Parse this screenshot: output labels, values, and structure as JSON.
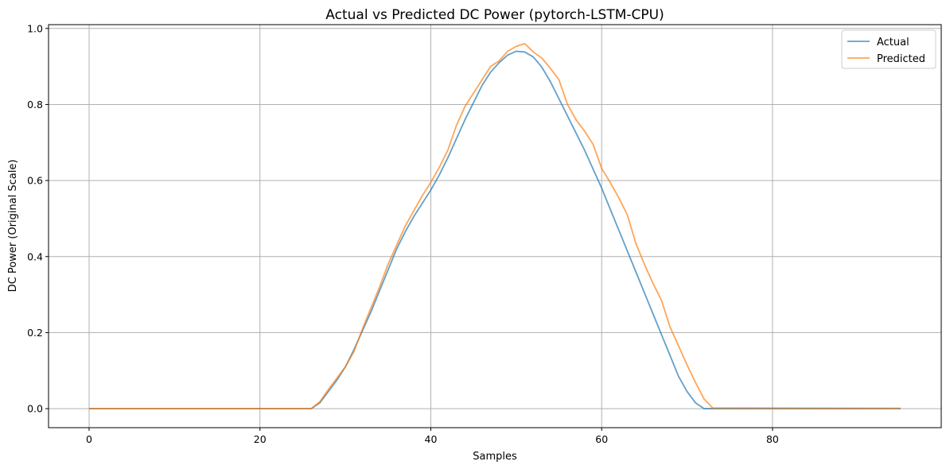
{
  "chart_data": {
    "type": "line",
    "title": "Actual vs Predicted DC Power (pytorch-LSTM-CPU)",
    "xlabel": "Samples",
    "ylabel": "DC Power (Original Scale)",
    "xlim": [
      -4.75,
      99.75
    ],
    "ylim": [
      -0.05,
      1.01
    ],
    "xticks": [
      0,
      20,
      40,
      60,
      80
    ],
    "yticks": [
      0.0,
      0.2,
      0.4,
      0.6,
      0.8,
      1.0
    ],
    "xtick_labels": [
      "0",
      "20",
      "40",
      "60",
      "80"
    ],
    "ytick_labels": [
      "0.0",
      "0.2",
      "0.4",
      "0.6",
      "0.8",
      "1.0"
    ],
    "grid": true,
    "legend_position": "top-right",
    "series": [
      {
        "name": "Actual",
        "color": "#1f77b4",
        "x": [
          0,
          26,
          27,
          28,
          29,
          30,
          31,
          32,
          33,
          34,
          35,
          36,
          37,
          38,
          39,
          40,
          41,
          42,
          43,
          44,
          45,
          46,
          47,
          48,
          49,
          50,
          51,
          52,
          53,
          54,
          55,
          56,
          57,
          58,
          59,
          60,
          61,
          62,
          63,
          64,
          65,
          66,
          67,
          68,
          69,
          70,
          71,
          72,
          73,
          95
        ],
        "y": [
          0.0,
          0.0,
          0.015,
          0.045,
          0.075,
          0.11,
          0.155,
          0.205,
          0.255,
          0.31,
          0.365,
          0.42,
          0.465,
          0.505,
          0.54,
          0.575,
          0.615,
          0.66,
          0.71,
          0.76,
          0.805,
          0.85,
          0.885,
          0.91,
          0.93,
          0.94,
          0.938,
          0.925,
          0.898,
          0.86,
          0.815,
          0.77,
          0.725,
          0.68,
          0.63,
          0.58,
          0.525,
          0.47,
          0.415,
          0.36,
          0.305,
          0.25,
          0.195,
          0.14,
          0.085,
          0.045,
          0.015,
          0.0,
          0.0,
          0.0
        ]
      },
      {
        "name": "Predicted",
        "color": "#ff7f0e",
        "x": [
          0,
          26,
          27,
          28,
          29,
          30,
          31,
          32,
          33,
          34,
          35,
          36,
          37,
          38,
          39,
          40,
          41,
          42,
          43,
          44,
          45,
          46,
          47,
          48,
          49,
          50,
          51,
          52,
          53,
          54,
          55,
          56,
          57,
          58,
          59,
          60,
          61,
          62,
          63,
          64,
          65,
          66,
          67,
          68,
          69,
          70,
          71,
          72,
          73,
          95
        ],
        "y": [
          0.0,
          0.0,
          0.018,
          0.05,
          0.08,
          0.11,
          0.15,
          0.21,
          0.265,
          0.32,
          0.38,
          0.43,
          0.48,
          0.52,
          0.56,
          0.595,
          0.635,
          0.68,
          0.745,
          0.795,
          0.83,
          0.865,
          0.9,
          0.915,
          0.94,
          0.953,
          0.96,
          0.938,
          0.922,
          0.895,
          0.865,
          0.8,
          0.76,
          0.73,
          0.695,
          0.632,
          0.595,
          0.555,
          0.51,
          0.435,
          0.38,
          0.33,
          0.285,
          0.215,
          0.165,
          0.115,
          0.068,
          0.025,
          0.002,
          0.001
        ]
      }
    ]
  }
}
